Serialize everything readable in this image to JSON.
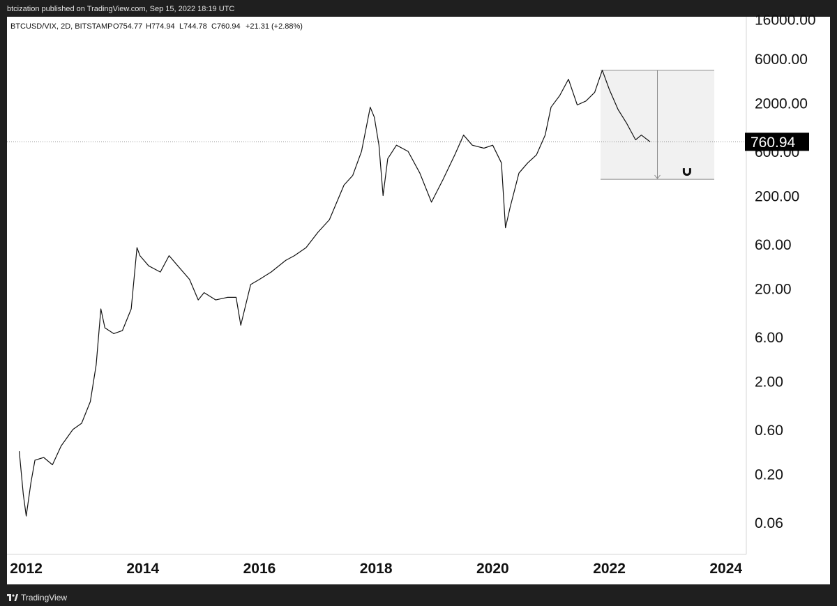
{
  "header": {
    "published": "btcization published on TradingView.com, Sep 15, 2022 18:19 UTC"
  },
  "footer": {
    "brand": "TradingView"
  },
  "chart_data": {
    "type": "line",
    "symbol_legend": "BTCUSD/VIX, 2D, BITSTAMP",
    "ohlc_legend": {
      "open": "O754.77",
      "high": "H774.94",
      "low": "L744.78",
      "close": "C760.94",
      "change": "+21.31 (+2.88%)"
    },
    "y_scale": "log",
    "ylim": [
      0.027,
      17000
    ],
    "xlim": [
      2011.67,
      2024.35
    ],
    "y_ticks": [
      "16000.00",
      "6000.00",
      "2000.00",
      "600.00",
      "200.00",
      "60.00",
      "20.00",
      "6.00",
      "2.00",
      "0.60",
      "0.20",
      "0.06"
    ],
    "y_tick_values": [
      16000,
      6000,
      2000,
      600,
      200,
      60,
      20,
      6,
      2,
      0.6,
      0.2,
      0.06
    ],
    "x_ticks": [
      "2012",
      "2014",
      "2016",
      "2018",
      "2020",
      "2022",
      "2024"
    ],
    "x_tick_values": [
      2012,
      2014,
      2016,
      2018,
      2020,
      2022,
      2024
    ],
    "last_price": {
      "label": "760.94",
      "value": 760.94
    },
    "series": [
      {
        "x": [
          2011.88,
          2011.95,
          2012.0,
          2012.08,
          2012.15,
          2012.3,
          2012.45,
          2012.6,
          2012.8,
          2012.95,
          2013.1,
          2013.2,
          2013.28,
          2013.35,
          2013.5,
          2013.65,
          2013.8,
          2013.9,
          2013.95,
          2014.1,
          2014.3,
          2014.45,
          2014.6,
          2014.8,
          2014.95,
          2015.05,
          2015.25,
          2015.45,
          2015.6,
          2015.68,
          2015.85,
          2016.0,
          2016.2,
          2016.45,
          2016.6,
          2016.8,
          2017.0,
          2017.2,
          2017.45,
          2017.6,
          2017.75,
          2017.9,
          2017.97,
          2018.05,
          2018.12,
          2018.2,
          2018.35,
          2018.55,
          2018.75,
          2018.95,
          2019.15,
          2019.35,
          2019.5,
          2019.65,
          2019.85,
          2020.0,
          2020.15,
          2020.22,
          2020.3,
          2020.45,
          2020.6,
          2020.75,
          2020.9,
          2021.0,
          2021.15,
          2021.3,
          2021.45,
          2021.6,
          2021.75,
          2021.88,
          2022.0,
          2022.15,
          2022.3,
          2022.45,
          2022.55,
          2022.7
        ],
        "values": [
          0.35,
          0.12,
          0.07,
          0.16,
          0.28,
          0.3,
          0.25,
          0.4,
          0.6,
          0.7,
          1.2,
          3.0,
          12.0,
          7.5,
          6.5,
          7.0,
          12.0,
          55.0,
          45.0,
          35.0,
          30.0,
          45.0,
          35.0,
          25.0,
          15.0,
          18.0,
          15.0,
          16.0,
          16.0,
          8.0,
          22.0,
          25.0,
          30.0,
          40.0,
          45.0,
          55.0,
          80.0,
          110.0,
          260.0,
          330.0,
          600.0,
          1800.0,
          1400.0,
          700.0,
          200.0,
          500.0,
          700.0,
          600.0,
          350.0,
          170.0,
          300.0,
          550.0,
          900.0,
          700.0,
          650.0,
          700.0,
          450.0,
          90.0,
          150.0,
          350.0,
          450.0,
          550.0,
          900.0,
          1800.0,
          2400.0,
          3600.0,
          1900.0,
          2100.0,
          2600.0,
          4500.0,
          2800.0,
          1700.0,
          1200.0,
          800.0,
          900.0,
          760.94
        ]
      }
    ],
    "annotation": {
      "type": "range",
      "x0": 2021.85,
      "x1": 2023.8,
      "y_top": 4500,
      "y_bottom": 300
    }
  }
}
